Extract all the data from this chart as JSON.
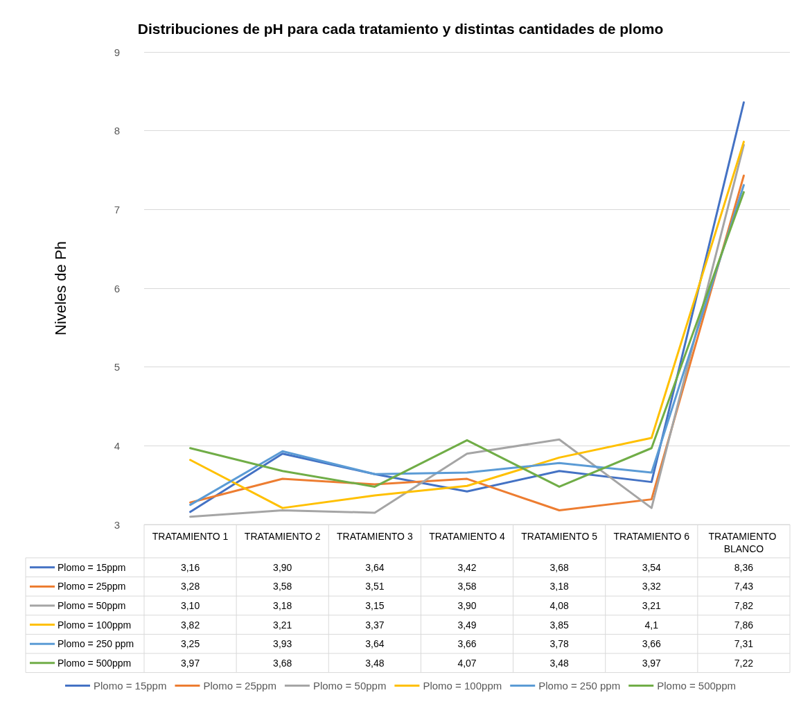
{
  "chart_data": {
    "type": "line",
    "title": "Distribuciones de pH para cada tratamiento y distintas cantidades de plomo",
    "ylabel": "Niveles de Ph",
    "categories": [
      "TRATAMIENTO 1",
      "TRATAMIENTO 2",
      "TRATAMIENTO 3",
      "TRATAMIENTO 4",
      "TRATAMIENTO 5",
      "TRATAMIENTO 6",
      "TRATAMIENTO BLANCO"
    ],
    "series": [
      {
        "name": "Plomo = 15ppm",
        "color": "#4472c4",
        "values": [
          3.16,
          3.9,
          3.64,
          3.42,
          3.68,
          3.54,
          8.36
        ],
        "value_labels": [
          "3,16",
          "3,90",
          "3,64",
          "3,42",
          "3,68",
          "3,54",
          "8,36"
        ]
      },
      {
        "name": "Plomo = 25ppm",
        "color": "#ed7d31",
        "values": [
          3.28,
          3.58,
          3.51,
          3.58,
          3.18,
          3.32,
          7.43
        ],
        "value_labels": [
          "3,28",
          "3,58",
          "3,51",
          "3,58",
          "3,18",
          "3,32",
          "7,43"
        ]
      },
      {
        "name": "Plomo = 50ppm",
        "color": "#a5a5a5",
        "values": [
          3.1,
          3.18,
          3.15,
          3.9,
          4.08,
          3.21,
          7.82
        ],
        "value_labels": [
          "3,10",
          "3,18",
          "3,15",
          "3,90",
          "4,08",
          "3,21",
          "7,82"
        ]
      },
      {
        "name": "Plomo = 100ppm",
        "color": "#ffc000",
        "values": [
          3.82,
          3.21,
          3.37,
          3.49,
          3.85,
          4.1,
          7.86
        ],
        "value_labels": [
          "3,82",
          "3,21",
          "3,37",
          "3,49",
          "3,85",
          "4,1",
          "7,86"
        ]
      },
      {
        "name": "Plomo = 250 ppm",
        "color": "#5b9bd5",
        "values": [
          3.25,
          3.93,
          3.64,
          3.66,
          3.78,
          3.66,
          7.31
        ],
        "value_labels": [
          "3,25",
          "3,93",
          "3,64",
          "3,66",
          "3,78",
          "3,66",
          "7,31"
        ]
      },
      {
        "name": "Plomo = 500ppm",
        "color": "#70ad47",
        "values": [
          3.97,
          3.68,
          3.48,
          4.07,
          3.48,
          3.97,
          7.22
        ],
        "value_labels": [
          "3,97",
          "3,68",
          "3,48",
          "4,07",
          "3,48",
          "3,97",
          "7,22"
        ]
      }
    ],
    "ylim": [
      3,
      9
    ],
    "yticks": [
      3,
      4,
      5,
      6,
      7,
      8,
      9
    ],
    "grid": "y",
    "legend": "bottom",
    "marker": "none",
    "line_style": "solid"
  }
}
